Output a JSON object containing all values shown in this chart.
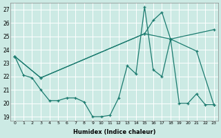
{
  "xlabel": "Humidex (Indice chaleur)",
  "background_color": "#cceae4",
  "grid_color": "#ffffff",
  "line_color": "#1a7a6e",
  "line1_x": [
    0,
    1,
    2,
    3,
    4,
    5,
    6,
    7,
    8,
    9,
    10,
    11,
    12,
    13,
    14,
    15,
    16,
    17,
    18,
    19,
    20,
    21,
    22,
    23
  ],
  "line1_y": [
    23.5,
    22.1,
    21.9,
    21.0,
    20.2,
    20.2,
    20.4,
    20.4,
    20.1,
    19.0,
    19.0,
    19.1,
    20.4,
    22.8,
    22.2,
    27.2,
    22.5,
    22.0,
    24.8,
    20.0,
    20.0,
    20.7,
    19.9,
    19.9
  ],
  "line2_x": [
    0,
    3,
    15,
    18,
    23
  ],
  "line2_y": [
    23.5,
    21.9,
    25.2,
    24.8,
    25.5
  ],
  "line3_x": [
    0,
    3,
    15,
    16,
    17,
    18,
    21,
    23
  ],
  "line3_y": [
    23.5,
    21.9,
    25.2,
    26.2,
    26.8,
    24.8,
    23.9,
    19.9
  ],
  "ylim": [
    18.7,
    27.5
  ],
  "xlim": [
    -0.5,
    23.5
  ],
  "yticks": [
    19,
    20,
    21,
    22,
    23,
    24,
    25,
    26,
    27
  ],
  "xticks": [
    0,
    1,
    2,
    3,
    4,
    5,
    6,
    7,
    8,
    9,
    10,
    11,
    12,
    13,
    14,
    15,
    16,
    17,
    18,
    19,
    20,
    21,
    22,
    23
  ]
}
